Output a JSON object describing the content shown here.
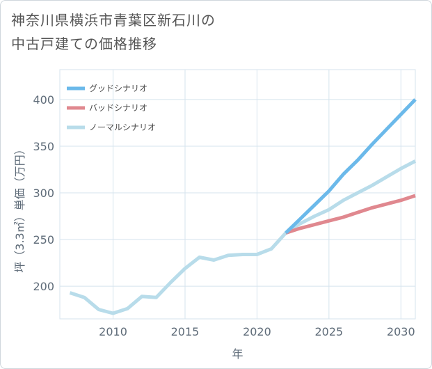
{
  "title_lines": [
    "神奈川県横浜市青葉区新石川の",
    "中古戸建ての価格推移"
  ],
  "chart_data": {
    "type": "line",
    "title": "神奈川県横浜市青葉区新石川の中古戸建ての価格推移",
    "xlabel": "年",
    "ylabel": "坪（3.3㎡）単価（万円）",
    "xlim": [
      2006.3,
      2031
    ],
    "ylim": [
      165,
      432
    ],
    "xticks": [
      2010,
      2015,
      2020,
      2025,
      2030
    ],
    "yticks": [
      200,
      250,
      300,
      350,
      400
    ],
    "grid": true,
    "legend_position": "top-left",
    "series": [
      {
        "name": "グッドシナリオ",
        "color": "#6bb9ea",
        "x": [
          2022,
          2023,
          2024,
          2025,
          2026,
          2027,
          2028,
          2029,
          2030,
          2031
        ],
        "values": [
          257,
          272,
          287,
          302,
          320,
          335,
          352,
          368,
          384,
          400
        ]
      },
      {
        "name": "バッドシナリオ",
        "color": "#e0888f",
        "x": [
          2022,
          2023,
          2024,
          2025,
          2026,
          2027,
          2028,
          2029,
          2030,
          2031
        ],
        "values": [
          257,
          262,
          266,
          270,
          274,
          279,
          284,
          288,
          292,
          297
        ]
      },
      {
        "name": "ノーマルシナリオ",
        "color": "#b8dcea",
        "x": [
          2007,
          2008,
          2009,
          2010,
          2011,
          2012,
          2013,
          2014,
          2015,
          2016,
          2017,
          2018,
          2019,
          2020,
          2021,
          2022,
          2023,
          2024,
          2025,
          2026,
          2027,
          2028,
          2029,
          2030,
          2031
        ],
        "values": [
          193,
          188,
          175,
          171,
          176,
          189,
          188,
          204,
          219,
          231,
          228,
          233,
          234,
          234,
          240,
          257,
          267,
          275,
          282,
          292,
          300,
          308,
          317,
          326,
          334
        ]
      }
    ]
  }
}
